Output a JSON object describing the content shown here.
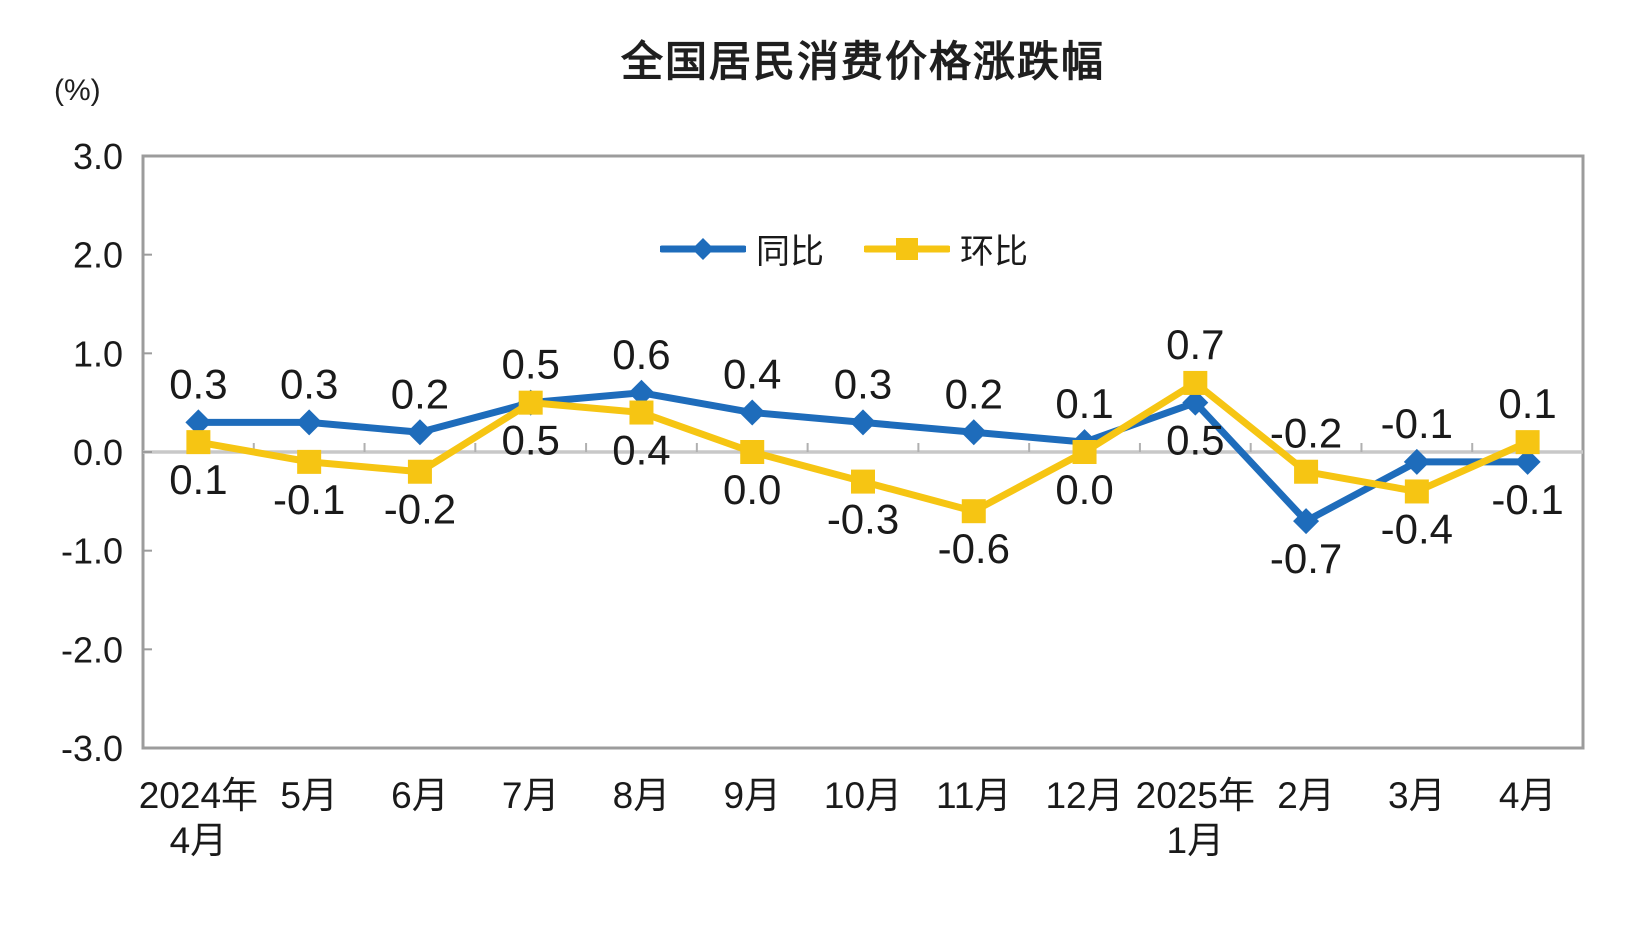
{
  "chart_data": {
    "type": "line",
    "title": "全国居民消费价格涨跌幅",
    "unit": "(%)",
    "xlabel": "",
    "ylabel": "(%)",
    "ylim": [
      -3.0,
      3.0
    ],
    "grid": "zero-baseline-only",
    "legend_position": "top-center-inside",
    "axis_color": "#9c9c9c",
    "zero_line_color": "#c8c8c8",
    "text_color": "#1a1a1a",
    "categories": [
      "2024年4月",
      "5月",
      "6月",
      "7月",
      "8月",
      "9月",
      "10月",
      "11月",
      "12月",
      "2025年1月",
      "2月",
      "3月",
      "4月"
    ],
    "x_tick_lines": [
      [
        "2024年",
        "4月"
      ],
      [
        "5月"
      ],
      [
        "6月"
      ],
      [
        "7月"
      ],
      [
        "8月"
      ],
      [
        "9月"
      ],
      [
        "10月"
      ],
      [
        "11月"
      ],
      [
        "12月"
      ],
      [
        "2025年",
        "1月"
      ],
      [
        "2月"
      ],
      [
        "3月"
      ],
      [
        "4月"
      ]
    ],
    "y_ticks": [
      "3.0",
      "2.0",
      "1.0",
      "0.0",
      "-1.0",
      "-2.0",
      "-3.0"
    ],
    "series": [
      {
        "name": "同比",
        "color": "#1e6cbb",
        "marker": "diamond",
        "values": [
          0.3,
          0.3,
          0.2,
          0.5,
          0.6,
          0.4,
          0.3,
          0.2,
          0.1,
          0.5,
          -0.7,
          -0.1,
          -0.1
        ],
        "labels": [
          "0.3",
          "0.3",
          "0.2",
          "0.5",
          "0.6",
          "0.4",
          "0.3",
          "0.2",
          "0.1",
          "0.5",
          "-0.7",
          "-0.1",
          "-0.1"
        ],
        "label_side": [
          "above",
          "above",
          "above",
          "above",
          "above",
          "above",
          "above",
          "above",
          "above",
          "below",
          "below",
          "above",
          "below"
        ]
      },
      {
        "name": "环比",
        "color": "#f6c513",
        "marker": "square",
        "values": [
          0.1,
          -0.1,
          -0.2,
          0.5,
          0.4,
          0.0,
          -0.3,
          -0.6,
          0.0,
          0.7,
          -0.2,
          -0.4,
          0.1
        ],
        "labels": [
          "0.1",
          "-0.1",
          "-0.2",
          "0.5",
          "0.4",
          "0.0",
          "-0.3",
          "-0.6",
          "0.0",
          "0.7",
          "-0.2",
          "-0.4",
          "0.1"
        ],
        "label_side": [
          "below",
          "below",
          "below",
          "below",
          "below",
          "below",
          "below",
          "below",
          "below",
          "above",
          "above",
          "below",
          "above"
        ]
      }
    ]
  }
}
